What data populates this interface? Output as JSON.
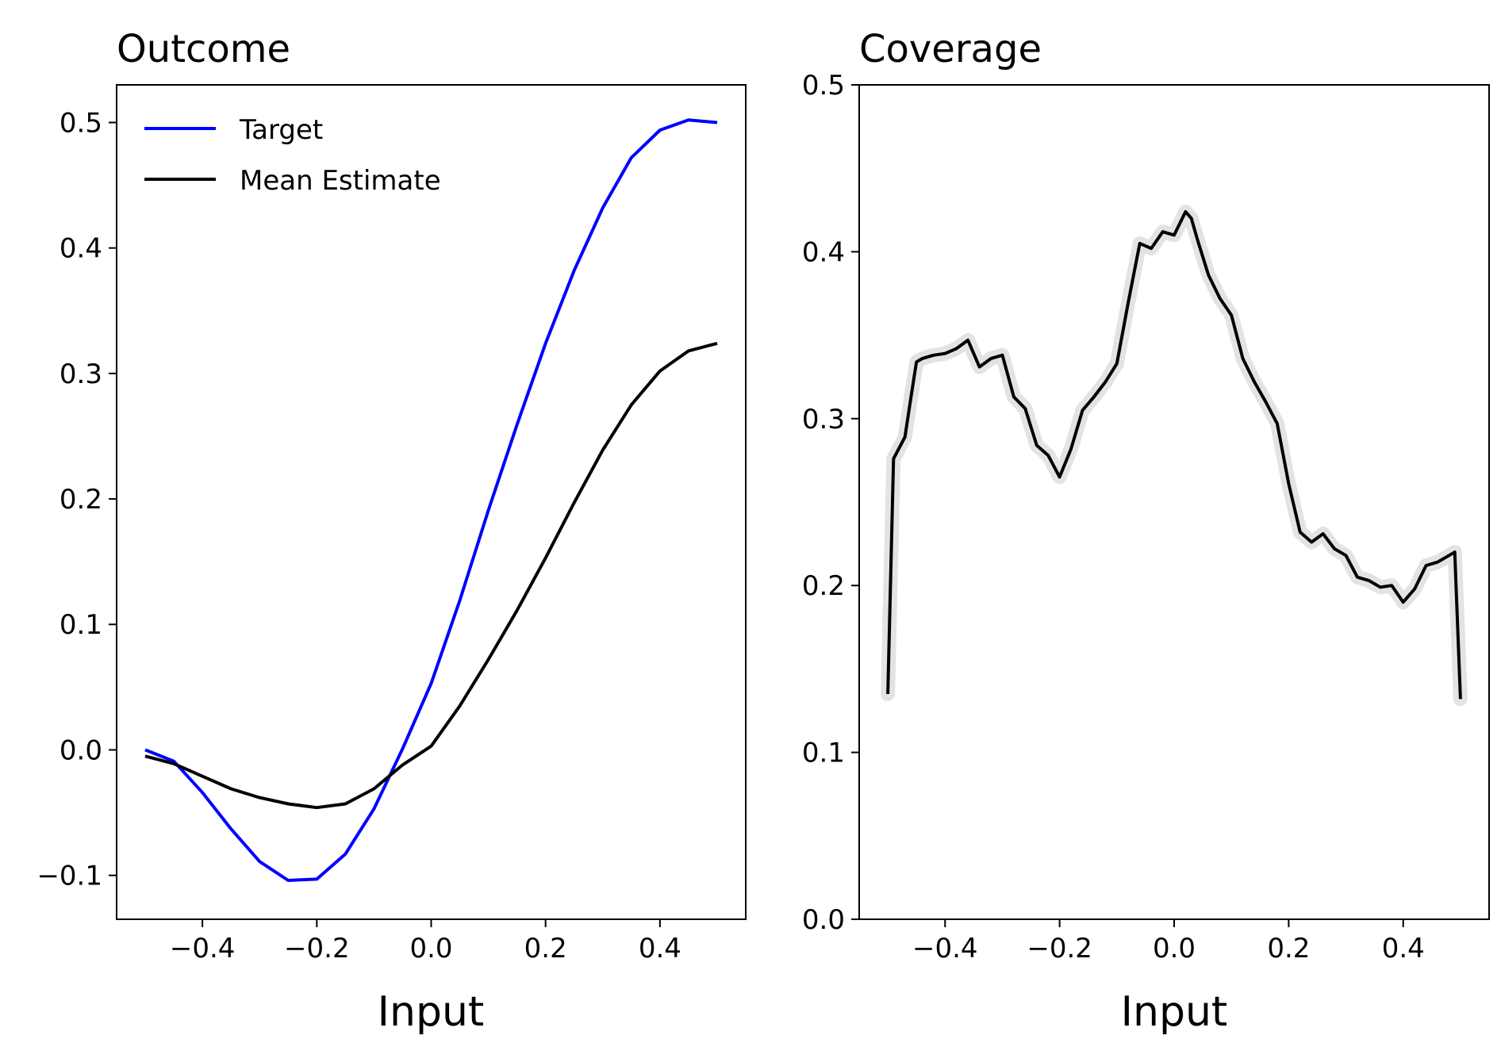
{
  "chart_data": [
    {
      "type": "line",
      "title": "Outcome",
      "xlabel": "Input",
      "ylabel": "",
      "xlim": [
        -0.55,
        0.55
      ],
      "ylim": [
        -0.135,
        0.53
      ],
      "xticks": [
        -0.4,
        -0.2,
        0.0,
        0.2,
        0.4
      ],
      "yticks": [
        -0.1,
        0.0,
        0.1,
        0.2,
        0.3,
        0.4,
        0.5
      ],
      "grid": false,
      "legend_placement": "top-left",
      "series": [
        {
          "name": "Target",
          "color": "#0000ff",
          "x": [
            -0.5,
            -0.45,
            -0.4,
            -0.35,
            -0.3,
            -0.25,
            -0.2,
            -0.15,
            -0.1,
            -0.05,
            0.0,
            0.05,
            0.1,
            0.15,
            0.2,
            0.25,
            0.3,
            0.35,
            0.4,
            0.45,
            0.5
          ],
          "y": [
            0.0,
            -0.009,
            -0.034,
            -0.063,
            -0.089,
            -0.104,
            -0.103,
            -0.083,
            -0.047,
            0.001,
            0.053,
            0.119,
            0.191,
            0.259,
            0.324,
            0.382,
            0.432,
            0.472,
            0.494,
            0.502,
            0.5
          ]
        },
        {
          "name": "Mean Estimate",
          "color": "#000000",
          "x": [
            -0.5,
            -0.45,
            -0.4,
            -0.35,
            -0.3,
            -0.25,
            -0.2,
            -0.15,
            -0.1,
            -0.05,
            0.0,
            0.05,
            0.1,
            0.15,
            0.2,
            0.25,
            0.3,
            0.35,
            0.4,
            0.45,
            0.5
          ],
          "y": [
            -0.005,
            -0.011,
            -0.021,
            -0.031,
            -0.038,
            -0.043,
            -0.046,
            -0.043,
            -0.031,
            -0.012,
            0.003,
            0.035,
            0.072,
            0.111,
            0.153,
            0.197,
            0.239,
            0.275,
            0.302,
            0.318,
            0.324
          ]
        }
      ]
    },
    {
      "type": "line",
      "title": "Coverage",
      "xlabel": "Input",
      "ylabel": "",
      "xlim": [
        -0.55,
        0.55
      ],
      "ylim": [
        0.0,
        0.5
      ],
      "xticks": [
        -0.4,
        -0.2,
        0.0,
        0.2,
        0.4
      ],
      "yticks": [
        0.0,
        0.1,
        0.2,
        0.3,
        0.4,
        0.5
      ],
      "grid": false,
      "series": [
        {
          "color": "#000000",
          "band_color": "#d9d9d9",
          "x": [
            -0.5,
            -0.49,
            -0.47,
            -0.46,
            -0.45,
            -0.44,
            -0.42,
            -0.4,
            -0.38,
            -0.36,
            -0.34,
            -0.32,
            -0.3,
            -0.28,
            -0.26,
            -0.24,
            -0.22,
            -0.2,
            -0.18,
            -0.16,
            -0.14,
            -0.12,
            -0.1,
            -0.08,
            -0.06,
            -0.04,
            -0.02,
            0.0,
            0.02,
            0.03,
            0.04,
            0.06,
            0.08,
            0.1,
            0.12,
            0.14,
            0.16,
            0.18,
            0.2,
            0.22,
            0.24,
            0.26,
            0.28,
            0.3,
            0.32,
            0.34,
            0.36,
            0.38,
            0.4,
            0.42,
            0.44,
            0.46,
            0.48,
            0.49,
            0.5
          ],
          "y": [
            0.135,
            0.276,
            0.289,
            0.312,
            0.334,
            0.336,
            0.338,
            0.339,
            0.342,
            0.347,
            0.331,
            0.336,
            0.338,
            0.313,
            0.306,
            0.284,
            0.278,
            0.265,
            0.282,
            0.305,
            0.313,
            0.322,
            0.333,
            0.37,
            0.405,
            0.402,
            0.412,
            0.41,
            0.424,
            0.42,
            0.408,
            0.386,
            0.372,
            0.362,
            0.336,
            0.322,
            0.31,
            0.297,
            0.261,
            0.232,
            0.226,
            0.231,
            0.222,
            0.218,
            0.205,
            0.203,
            0.199,
            0.2,
            0.19,
            0.198,
            0.212,
            0.214,
            0.218,
            0.22,
            0.132
          ]
        }
      ]
    }
  ]
}
